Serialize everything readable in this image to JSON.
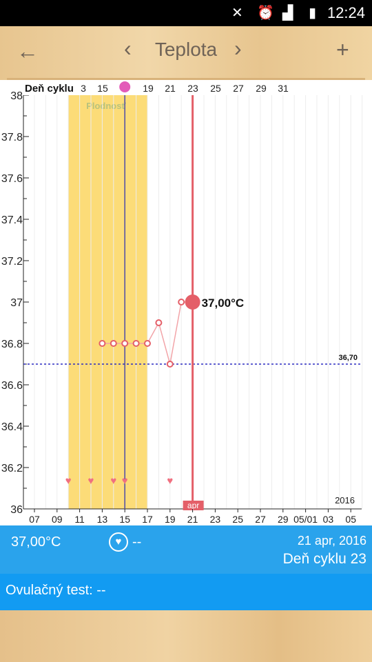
{
  "status_bar": {
    "time": "12:24",
    "icons": [
      "mute-icon",
      "alarm-icon",
      "signal-icon",
      "battery-icon"
    ]
  },
  "app_bar": {
    "title": "Teplota",
    "back_icon": "←",
    "prev_icon": "‹",
    "next_icon": "›",
    "add_icon": "+"
  },
  "chart_data": {
    "type": "line",
    "title": "",
    "top_axis_label": "Deň cyklu",
    "top_axis_ticks": [
      "3",
      "15",
      "19",
      "21",
      "23",
      "25",
      "27",
      "29",
      "31"
    ],
    "x_ticks": [
      "07",
      "09",
      "11",
      "13",
      "15",
      "17",
      "19",
      "21",
      "23",
      "25",
      "27",
      "29",
      "05/01",
      "03",
      "05"
    ],
    "y_ticks": [
      "38",
      "37.8",
      "37.6",
      "37.4",
      "37.2",
      "37",
      "36.8",
      "36.6",
      "36.4",
      "36.2",
      "36"
    ],
    "ylim": [
      36,
      38
    ],
    "year_label": "2016",
    "month_label": "apr",
    "fertile_window": {
      "label": "Plodnosť",
      "from_day": 10,
      "to_day": 17
    },
    "ovulation_day": 15,
    "selected_day": 21,
    "coverline": {
      "value": 36.7,
      "label": "36,70"
    },
    "series": [
      {
        "points": [
          {
            "day": 13,
            "value": 36.8
          },
          {
            "day": 14,
            "value": 36.8
          },
          {
            "day": 15,
            "value": 36.8
          },
          {
            "day": 16,
            "value": 36.8
          },
          {
            "day": 17,
            "value": 36.8
          },
          {
            "day": 18,
            "value": 36.9
          },
          {
            "day": 19,
            "value": 36.7
          },
          {
            "day": 20,
            "value": 37.0
          },
          {
            "day": 21,
            "value": 37.0
          }
        ]
      }
    ],
    "selected_label": "37,00°C",
    "heart_days": [
      10,
      12,
      14,
      15,
      19
    ],
    "colors": {
      "fertile": "#fcdc78",
      "line": "#e45f68",
      "ovulation": "#4b4aa6",
      "coverline": "#2a2ac0",
      "heart": "#f07080"
    }
  },
  "info_panel": {
    "temperature": "37,00°C",
    "heart_icon": "heart-icon",
    "intercourse_value": "--",
    "date": "21 apr, 2016",
    "cycle_day": "Deň cyklu 23"
  },
  "ovulation_test": {
    "label": "Ovulačný test: --"
  }
}
